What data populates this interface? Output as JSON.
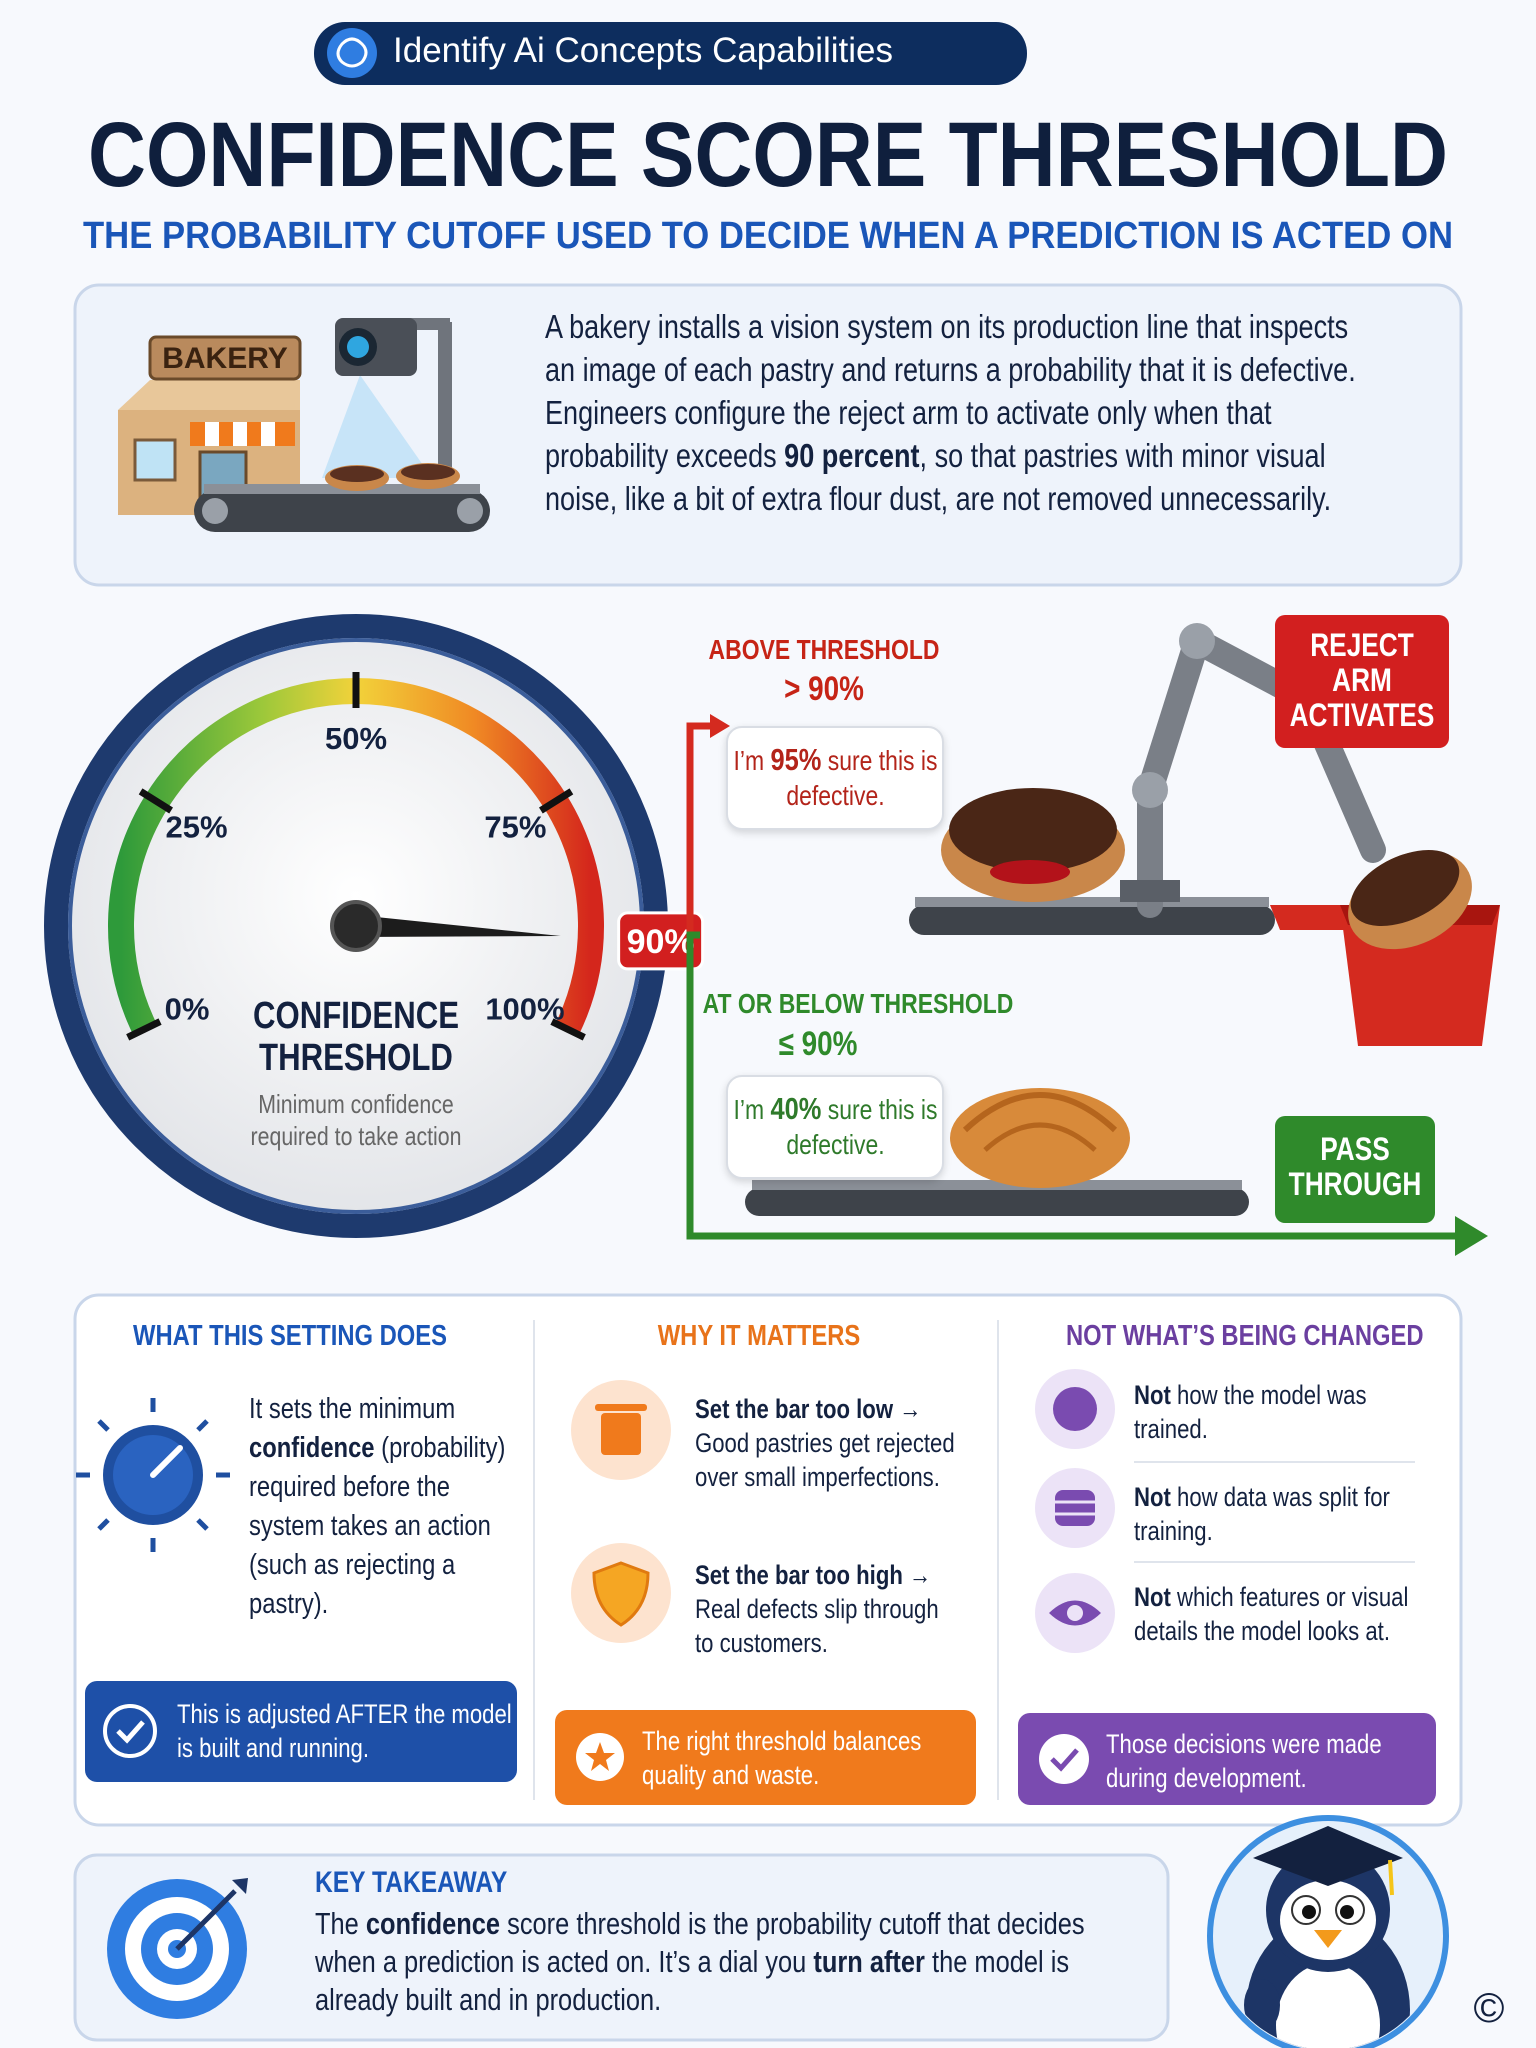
{
  "header": {
    "badge": "Identify Ai Concepts Capabilities",
    "title": "CONFIDENCE SCORE THRESHOLD",
    "subtitle": "THE PROBABILITY CUTOFF USED TO DECIDE WHEN A PREDICTION IS ACTED ON"
  },
  "intro": {
    "sign": "BAKERY",
    "text": [
      "A bakery installs a vision system on its production line that inspects an image of each pastry and returns a probability that it is defective. Engineers configure the reject arm to activate only when that probability exceeds ",
      "90 percent",
      ", so that pastries with minor visual noise, like a bit of extra flour dust, are not removed unnecessarily."
    ]
  },
  "gauge": {
    "ticks": [
      {
        "value": 0,
        "label": "0%"
      },
      {
        "value": 25,
        "label": "25%"
      },
      {
        "value": 50,
        "label": "50%"
      },
      {
        "value": 75,
        "label": "75%"
      },
      {
        "value": 100,
        "label": "100%"
      }
    ],
    "threshold": {
      "value": 90,
      "label": "90%"
    },
    "title": "CONFIDENCE THRESHOLD",
    "caption": "Minimum confidence required to take action"
  },
  "above": {
    "heading": "ABOVE THRESHOLD",
    "condition": "> 90%",
    "bubble": [
      "I’m ",
      "95%",
      " sure this is defective."
    ],
    "action": "REJECT ARM ACTIVATES"
  },
  "below": {
    "heading": "AT OR BELOW THRESHOLD",
    "condition": "≤ 90%",
    "bubble": [
      "I’m ",
      "40%",
      " sure this is defective."
    ],
    "action": "PASS THROUGH"
  },
  "columns": [
    {
      "heading": "WHAT THIS SETTING DOES",
      "text": [
        "It sets the minimum ",
        "confidence",
        " (probability) required before the system takes an action (such as rejecting a pastry)."
      ],
      "note": "This is adjusted AFTER the model is built and running."
    },
    {
      "heading": "WHY IT MATTERS",
      "items": [
        {
          "title": "Set the bar too low →",
          "text": "Good pastries get rejected over small imperfections."
        },
        {
          "title": "Set the bar too high →",
          "text": "Real defects slip through to customers."
        }
      ],
      "note": "The right threshold balances quality and waste."
    },
    {
      "heading": "NOT WHAT’S BEING CHANGED",
      "items": [
        [
          "Not",
          " how the model was trained."
        ],
        [
          "Not",
          " how data was split for training."
        ],
        [
          "Not",
          " which features or visual details the model looks at."
        ]
      ],
      "note": "Those decisions were made during development."
    }
  ],
  "takeaway": {
    "heading": "KEY TAKEAWAY",
    "text": [
      "The ",
      "confidence",
      " score threshold is the probability cutoff that decides when a prediction is acted on. It’s a dial you ",
      "turn after",
      " the model is already built and in production."
    ]
  },
  "copyright": "©"
}
